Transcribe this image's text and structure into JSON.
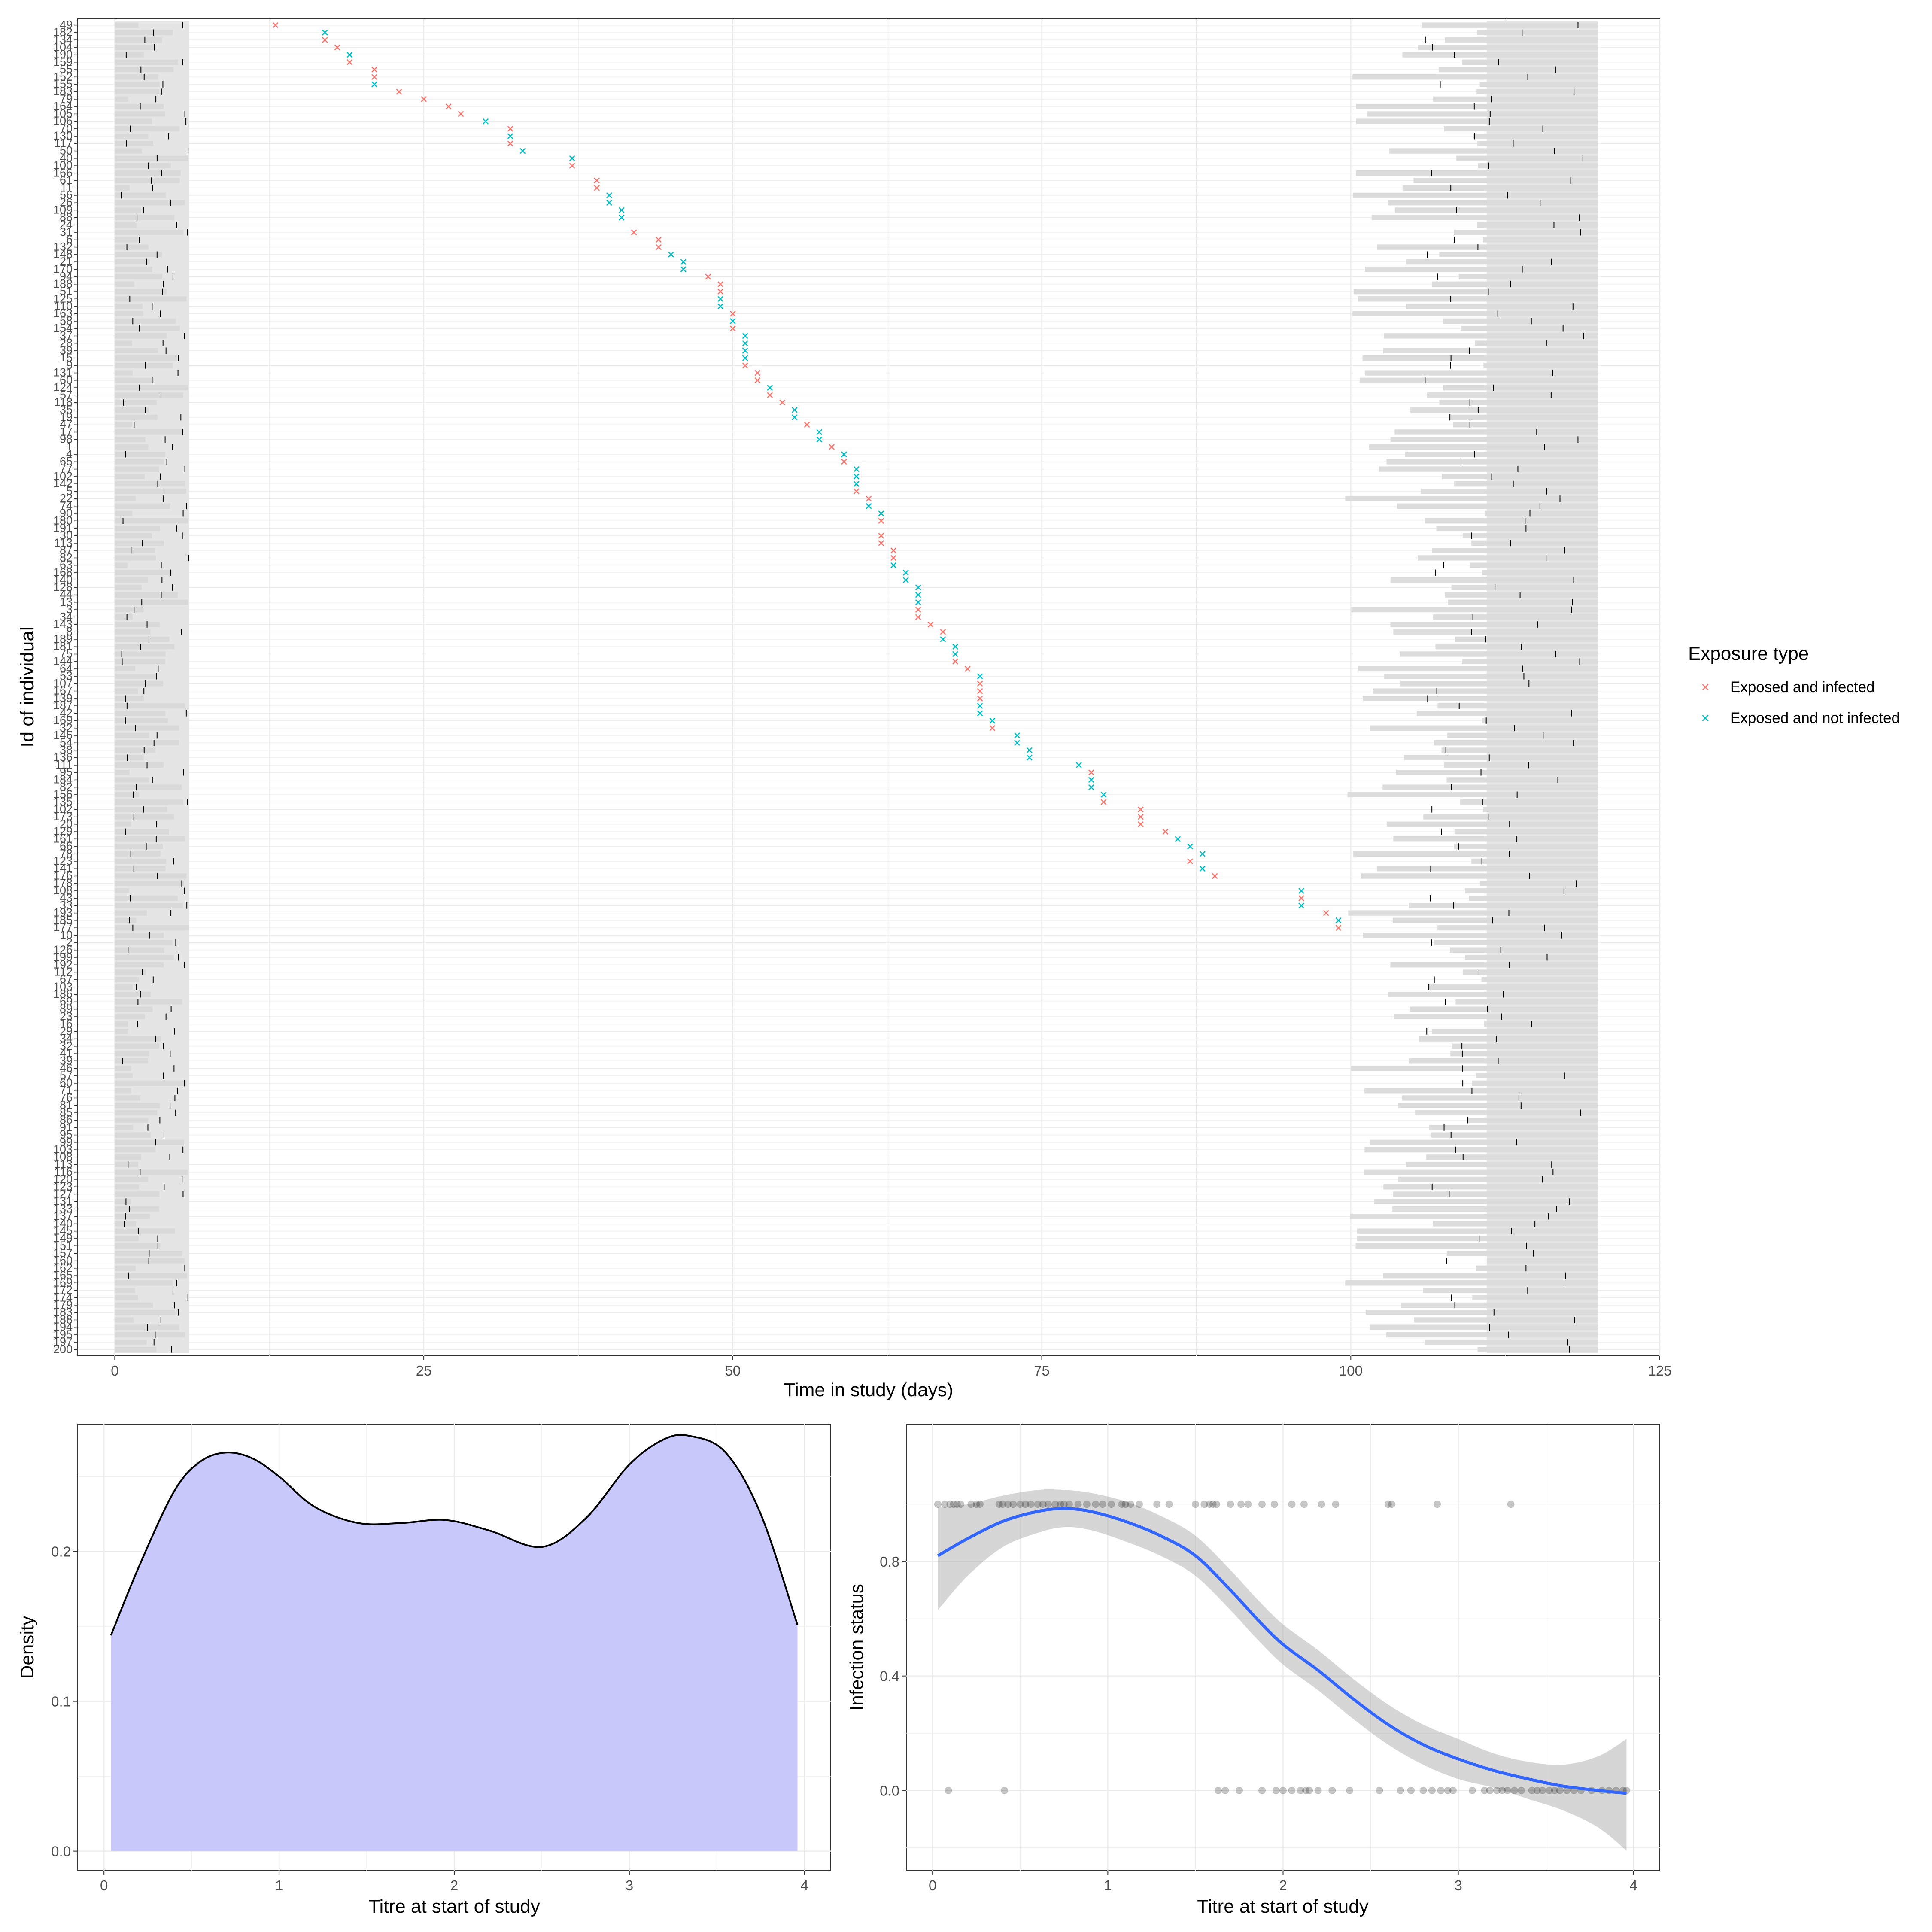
{
  "colors": {
    "infected": "#F8766D",
    "not_infected": "#00BFC4",
    "panel_bg": "#FFFFFF",
    "grid": "#EBEBEB",
    "bar_fill": "#E5E5E5",
    "density_fill": "#C8C8FA",
    "smooth_line": "#3366FF",
    "ribbon": "#CCCCCC"
  },
  "chart_data": [
    {
      "type": "scatter",
      "panel": "top",
      "xlabel": "Time in study (days)",
      "ylabel": "Id of individual",
      "xlim": [
        -3,
        125
      ],
      "x_ticks": [
        0,
        25,
        50,
        75,
        100,
        125
      ],
      "grid": true,
      "legend": {
        "title": "Exposure type",
        "position": "right",
        "entries": [
          {
            "label": "Exposed and infected",
            "color": "#F8766D",
            "icon": "cross"
          },
          {
            "label": "Exposed and not infected",
            "color": "#00BFC4",
            "icon": "cross"
          }
        ]
      },
      "y_categories_top_to_bottom": [
        "49",
        "182",
        "134",
        "104",
        "190",
        "159",
        "55",
        "152",
        "155",
        "183",
        "79",
        "164",
        "105",
        "106",
        "70",
        "130",
        "117",
        "50",
        "40",
        "100",
        "166",
        "61",
        "11",
        "56",
        "26",
        "109",
        "88",
        "24",
        "31",
        "6",
        "132",
        "148",
        "21",
        "170",
        "94",
        "188",
        "51",
        "125",
        "110",
        "163",
        "58",
        "154",
        "37",
        "28",
        "39",
        "15",
        "9",
        "131",
        "60",
        "124",
        "57",
        "118",
        "35",
        "19",
        "47",
        "17",
        "98",
        "1",
        "4",
        "65",
        "77",
        "102",
        "142",
        "5",
        "22",
        "74",
        "90",
        "180",
        "191",
        "30",
        "113",
        "87",
        "82",
        "63",
        "168",
        "140",
        "128",
        "44",
        "13",
        "3",
        "34",
        "143",
        "8",
        "189",
        "181",
        "75",
        "144",
        "64",
        "53",
        "107",
        "167",
        "139",
        "187",
        "42",
        "169",
        "32",
        "146",
        "54",
        "38",
        "136",
        "111",
        "95",
        "184",
        "82",
        "156",
        "135",
        "102",
        "173",
        "20",
        "129",
        "161",
        "66",
        "78",
        "123",
        "141",
        "176",
        "178",
        "108",
        "43",
        "33",
        "193",
        "185",
        "177",
        "10",
        "2",
        "126",
        "199",
        "192",
        "112",
        "67",
        "103",
        "186",
        "69",
        "89",
        "23",
        "16",
        "29",
        "34",
        "32",
        "41",
        "39",
        "46",
        "57",
        "60",
        "71",
        "76",
        "81",
        "85",
        "86",
        "91",
        "95",
        "99",
        "103",
        "108",
        "113",
        "116",
        "120",
        "123",
        "127",
        "131",
        "133",
        "137",
        "140",
        "145",
        "149",
        "151",
        "157",
        "160",
        "162",
        "165",
        "169",
        "172",
        "174",
        "179",
        "183",
        "188",
        "194",
        "195",
        "197",
        "200"
      ],
      "infected": [
        {
          "row": 0,
          "x": 13
        },
        {
          "row": 2,
          "x": 17
        },
        {
          "row": 3,
          "x": 18
        },
        {
          "row": 5,
          "x": 19
        },
        {
          "row": 6,
          "x": 21
        },
        {
          "row": 7,
          "x": 21
        },
        {
          "row": 9,
          "x": 23
        },
        {
          "row": 10,
          "x": 25
        },
        {
          "row": 11,
          "x": 27
        },
        {
          "row": 12,
          "x": 28
        },
        {
          "row": 14,
          "x": 32
        },
        {
          "row": 16,
          "x": 32
        },
        {
          "row": 19,
          "x": 37
        },
        {
          "row": 21,
          "x": 39
        },
        {
          "row": 22,
          "x": 39
        },
        {
          "row": 28,
          "x": 42
        },
        {
          "row": 29,
          "x": 44
        },
        {
          "row": 30,
          "x": 44
        },
        {
          "row": 34,
          "x": 48
        },
        {
          "row": 35,
          "x": 49
        },
        {
          "row": 36,
          "x": 49
        },
        {
          "row": 39,
          "x": 50
        },
        {
          "row": 41,
          "x": 50
        },
        {
          "row": 46,
          "x": 51
        },
        {
          "row": 47,
          "x": 52
        },
        {
          "row": 48,
          "x": 52
        },
        {
          "row": 50,
          "x": 53
        },
        {
          "row": 51,
          "x": 54
        },
        {
          "row": 54,
          "x": 56
        },
        {
          "row": 57,
          "x": 58
        },
        {
          "row": 59,
          "x": 59
        },
        {
          "row": 63,
          "x": 60
        },
        {
          "row": 64,
          "x": 61
        },
        {
          "row": 67,
          "x": 62
        },
        {
          "row": 69,
          "x": 62
        },
        {
          "row": 70,
          "x": 62
        },
        {
          "row": 71,
          "x": 63
        },
        {
          "row": 72,
          "x": 63
        },
        {
          "row": 79,
          "x": 65
        },
        {
          "row": 80,
          "x": 65
        },
        {
          "row": 81,
          "x": 66
        },
        {
          "row": 82,
          "x": 67
        },
        {
          "row": 86,
          "x": 68
        },
        {
          "row": 87,
          "x": 69
        },
        {
          "row": 89,
          "x": 70
        },
        {
          "row": 90,
          "x": 70
        },
        {
          "row": 91,
          "x": 70
        },
        {
          "row": 95,
          "x": 71
        },
        {
          "row": 101,
          "x": 79
        },
        {
          "row": 105,
          "x": 80
        },
        {
          "row": 106,
          "x": 83
        },
        {
          "row": 107,
          "x": 83
        },
        {
          "row": 108,
          "x": 83
        },
        {
          "row": 109,
          "x": 85
        },
        {
          "row": 113,
          "x": 87
        },
        {
          "row": 115,
          "x": 89
        },
        {
          "row": 118,
          "x": 96
        },
        {
          "row": 120,
          "x": 98
        },
        {
          "row": 122,
          "x": 99
        }
      ],
      "not_infected": [
        {
          "row": 1,
          "x": 17
        },
        {
          "row": 4,
          "x": 19
        },
        {
          "row": 8,
          "x": 21
        },
        {
          "row": 13,
          "x": 30
        },
        {
          "row": 15,
          "x": 32
        },
        {
          "row": 17,
          "x": 33
        },
        {
          "row": 18,
          "x": 37
        },
        {
          "row": 23,
          "x": 40
        },
        {
          "row": 24,
          "x": 40
        },
        {
          "row": 25,
          "x": 41
        },
        {
          "row": 26,
          "x": 41
        },
        {
          "row": 31,
          "x": 45
        },
        {
          "row": 32,
          "x": 46
        },
        {
          "row": 33,
          "x": 46
        },
        {
          "row": 37,
          "x": 49
        },
        {
          "row": 38,
          "x": 49
        },
        {
          "row": 40,
          "x": 50
        },
        {
          "row": 42,
          "x": 51
        },
        {
          "row": 43,
          "x": 51
        },
        {
          "row": 44,
          "x": 51
        },
        {
          "row": 45,
          "x": 51
        },
        {
          "row": 49,
          "x": 53
        },
        {
          "row": 52,
          "x": 55
        },
        {
          "row": 53,
          "x": 55
        },
        {
          "row": 55,
          "x": 57
        },
        {
          "row": 56,
          "x": 57
        },
        {
          "row": 58,
          "x": 59
        },
        {
          "row": 60,
          "x": 60
        },
        {
          "row": 61,
          "x": 60
        },
        {
          "row": 62,
          "x": 60
        },
        {
          "row": 65,
          "x": 61
        },
        {
          "row": 66,
          "x": 62
        },
        {
          "row": 73,
          "x": 63
        },
        {
          "row": 74,
          "x": 64
        },
        {
          "row": 75,
          "x": 64
        },
        {
          "row": 76,
          "x": 65
        },
        {
          "row": 77,
          "x": 65
        },
        {
          "row": 78,
          "x": 65
        },
        {
          "row": 83,
          "x": 67
        },
        {
          "row": 84,
          "x": 68
        },
        {
          "row": 85,
          "x": 68
        },
        {
          "row": 88,
          "x": 70
        },
        {
          "row": 92,
          "x": 70
        },
        {
          "row": 93,
          "x": 70
        },
        {
          "row": 94,
          "x": 71
        },
        {
          "row": 96,
          "x": 73
        },
        {
          "row": 97,
          "x": 73
        },
        {
          "row": 98,
          "x": 74
        },
        {
          "row": 99,
          "x": 74
        },
        {
          "row": 100,
          "x": 78
        },
        {
          "row": 102,
          "x": 79
        },
        {
          "row": 103,
          "x": 79
        },
        {
          "row": 104,
          "x": 80
        },
        {
          "row": 110,
          "x": 86
        },
        {
          "row": 111,
          "x": 87
        },
        {
          "row": 112,
          "x": 88
        },
        {
          "row": 114,
          "x": 88
        },
        {
          "row": 117,
          "x": 96
        },
        {
          "row": 119,
          "x": 96
        },
        {
          "row": 121,
          "x": 99
        }
      ],
      "bar_start_day": 0,
      "bar_end_day": 120,
      "shaded_start_range": [
        0,
        6
      ],
      "shaded_end_range": [
        99,
        120
      ]
    },
    {
      "type": "area",
      "panel": "bottom-left",
      "xlabel": "Titre at start of study",
      "ylabel": "Density",
      "xlim": [
        -0.15,
        4.15
      ],
      "ylim": [
        -0.013,
        0.285
      ],
      "x_ticks": [
        0,
        1,
        2,
        3,
        4
      ],
      "y_ticks": [
        0.0,
        0.1,
        0.2
      ],
      "y_tick_labels": [
        "0.0",
        "0.1",
        "0.2"
      ],
      "grid": true,
      "x": [
        0.04,
        0.2,
        0.4,
        0.55,
        0.7,
        0.85,
        1.0,
        1.2,
        1.45,
        1.7,
        1.95,
        2.2,
        2.5,
        2.75,
        3.0,
        3.2,
        3.35,
        3.55,
        3.75,
        3.96
      ],
      "y": [
        0.144,
        0.19,
        0.24,
        0.26,
        0.266,
        0.262,
        0.25,
        0.23,
        0.219,
        0.219,
        0.221,
        0.214,
        0.203,
        0.222,
        0.258,
        0.275,
        0.277,
        0.266,
        0.225,
        0.151
      ]
    },
    {
      "type": "scatter",
      "panel": "bottom-right",
      "xlabel": "Titre at start of study",
      "ylabel": "Infection status",
      "xlim": [
        -0.15,
        4.15
      ],
      "ylim": [
        -0.28,
        1.28
      ],
      "x_ticks": [
        0,
        1,
        2,
        3,
        4
      ],
      "y_ticks": [
        0.0,
        0.4,
        0.8
      ],
      "y_tick_labels": [
        "0.0",
        "0.4",
        "0.8"
      ],
      "grid": true,
      "points_at_1": [
        0.03,
        0.07,
        0.1,
        0.12,
        0.14,
        0.16,
        0.22,
        0.25,
        0.27,
        0.38,
        0.4,
        0.43,
        0.46,
        0.5,
        0.53,
        0.56,
        0.6,
        0.63,
        0.66,
        0.7,
        0.73,
        0.75,
        0.78,
        0.83,
        0.88,
        0.93,
        0.97,
        1.02,
        1.08,
        1.1,
        1.13,
        1.18,
        1.28,
        1.35,
        1.5,
        1.55,
        1.58,
        1.6,
        1.62,
        1.7,
        1.76,
        1.8,
        1.88,
        1.95,
        2.05,
        2.12,
        2.22,
        2.3,
        2.6,
        2.62,
        2.88,
        3.3
      ],
      "points_at_0": [
        0.09,
        0.41,
        1.63,
        1.67,
        1.75,
        1.88,
        1.96,
        2.0,
        2.05,
        2.1,
        2.13,
        2.15,
        2.2,
        2.28,
        2.38,
        2.55,
        2.67,
        2.73,
        2.8,
        2.85,
        2.9,
        2.94,
        2.97,
        3.08,
        3.15,
        3.18,
        3.22,
        3.25,
        3.28,
        3.32,
        3.36,
        3.42,
        3.45,
        3.48,
        3.52,
        3.55,
        3.58,
        3.62,
        3.66,
        3.7,
        3.76,
        3.82,
        3.86,
        3.9,
        3.94,
        3.96
      ],
      "smooth_x": [
        0.03,
        0.2,
        0.4,
        0.6,
        0.75,
        0.9,
        1.1,
        1.3,
        1.5,
        1.7,
        1.85,
        2.0,
        2.2,
        2.4,
        2.6,
        2.8,
        3.0,
        3.2,
        3.4,
        3.6,
        3.8,
        3.96
      ],
      "smooth_y": [
        0.82,
        0.88,
        0.94,
        0.975,
        0.985,
        0.975,
        0.94,
        0.89,
        0.82,
        0.7,
        0.6,
        0.51,
        0.42,
        0.32,
        0.23,
        0.16,
        0.11,
        0.07,
        0.04,
        0.015,
        0.0,
        -0.01
      ],
      "ribbon_upper": [
        0.99,
        1.0,
        1.03,
        1.05,
        1.05,
        1.04,
        1.01,
        0.96,
        0.89,
        0.77,
        0.67,
        0.58,
        0.49,
        0.39,
        0.3,
        0.23,
        0.18,
        0.13,
        0.1,
        0.09,
        0.12,
        0.18
      ],
      "ribbon_lower": [
        0.63,
        0.75,
        0.85,
        0.9,
        0.92,
        0.91,
        0.87,
        0.82,
        0.75,
        0.63,
        0.53,
        0.44,
        0.35,
        0.25,
        0.16,
        0.09,
        0.04,
        0.01,
        -0.03,
        -0.07,
        -0.13,
        -0.21
      ]
    }
  ]
}
